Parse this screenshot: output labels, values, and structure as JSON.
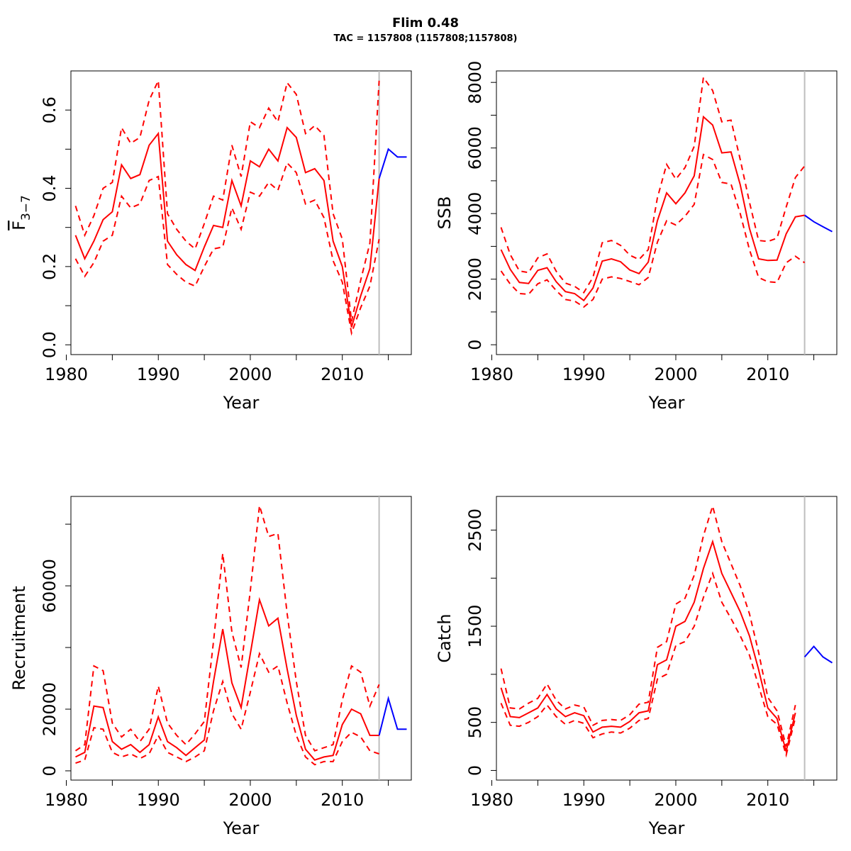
{
  "header": {
    "title": "Flim 0.48",
    "subtitle": "TAC = 1157808 (1157808;1157808)"
  },
  "colors": {
    "estimate": "#ff0000",
    "forecast": "#0000ff",
    "divider": "#bebebe",
    "axis": "#000000"
  },
  "chart_data": [
    {
      "type": "line",
      "ylabel_main": "F",
      "ylabel_sub": "3−7",
      "xlabel": "Year",
      "xlim": [
        1980.5,
        2017.5
      ],
      "ylim": [
        -0.025,
        0.7
      ],
      "xticks": [
        1980,
        1990,
        2000,
        2010
      ],
      "xminorticks": [
        1985,
        1995,
        2005,
        2015
      ],
      "yticks": [
        "0.0",
        "0.2",
        "0.4",
        "0.6"
      ],
      "ytick_values": [
        0.0,
        0.2,
        0.4,
        0.6
      ],
      "yminorticks": [
        0.1,
        0.3,
        0.5
      ],
      "divider_x": 2014,
      "estimate": {
        "x": [
          1981,
          1982,
          1983,
          1984,
          1985,
          1986,
          1987,
          1988,
          1989,
          1990,
          1991,
          1992,
          1993,
          1994,
          1995,
          1996,
          1997,
          1998,
          1999,
          2000,
          2001,
          2002,
          2003,
          2004,
          2005,
          2006,
          2007,
          2008,
          2009,
          2010,
          2011,
          2012,
          2013,
          2014
        ],
        "mid": [
          0.28,
          0.22,
          0.265,
          0.32,
          0.34,
          0.46,
          0.425,
          0.435,
          0.51,
          0.54,
          0.265,
          0.23,
          0.205,
          0.19,
          0.25,
          0.305,
          0.3,
          0.42,
          0.355,
          0.47,
          0.455,
          0.5,
          0.47,
          0.555,
          0.53,
          0.44,
          0.45,
          0.42,
          0.265,
          0.2,
          0.045,
          0.125,
          0.195,
          0.425
        ],
        "lower": [
          0.22,
          0.175,
          0.21,
          0.265,
          0.28,
          0.38,
          0.35,
          0.36,
          0.42,
          0.43,
          0.205,
          0.18,
          0.16,
          0.15,
          0.2,
          0.245,
          0.25,
          0.35,
          0.295,
          0.39,
          0.38,
          0.415,
          0.395,
          0.465,
          0.44,
          0.36,
          0.37,
          0.325,
          0.215,
          0.16,
          0.03,
          0.095,
          0.15,
          0.27
        ],
        "upper": [
          0.355,
          0.28,
          0.33,
          0.4,
          0.415,
          0.555,
          0.515,
          0.53,
          0.625,
          0.675,
          0.335,
          0.295,
          0.265,
          0.245,
          0.31,
          0.38,
          0.37,
          0.51,
          0.43,
          0.57,
          0.555,
          0.605,
          0.57,
          0.67,
          0.64,
          0.54,
          0.56,
          0.535,
          0.335,
          0.27,
          0.06,
          0.165,
          0.26,
          0.675
        ]
      },
      "forecast": {
        "x": [
          2014,
          2015,
          2016,
          2017
        ],
        "values": [
          0.425,
          0.5,
          0.48,
          0.48
        ]
      }
    },
    {
      "type": "line",
      "ylabel": "SSB",
      "xlabel": "Year",
      "xlim": [
        1980.5,
        2017.5
      ],
      "ylim": [
        -300,
        8350
      ],
      "xticks": [
        1980,
        1990,
        2000,
        2010
      ],
      "xminorticks": [
        1985,
        1995,
        2005,
        2015
      ],
      "yticks": [
        "0",
        "2000",
        "4000",
        "6000",
        "8000"
      ],
      "ytick_values": [
        0,
        2000,
        4000,
        6000,
        8000
      ],
      "yminorticks": [
        1000,
        3000,
        5000,
        7000
      ],
      "divider_x": 2014,
      "estimate": {
        "x": [
          1981,
          1982,
          1983,
          1984,
          1985,
          1986,
          1987,
          1988,
          1989,
          1990,
          1991,
          1992,
          1993,
          1994,
          1995,
          1996,
          1997,
          1998,
          1999,
          2000,
          2001,
          2002,
          2003,
          2004,
          2005,
          2006,
          2007,
          2008,
          2009,
          2010,
          2011,
          2012,
          2013,
          2014
        ],
        "mid": [
          2900,
          2300,
          1900,
          1870,
          2270,
          2350,
          1920,
          1620,
          1560,
          1350,
          1730,
          2550,
          2620,
          2530,
          2280,
          2170,
          2520,
          3780,
          4630,
          4300,
          4630,
          5150,
          6950,
          6700,
          5850,
          5880,
          4880,
          3550,
          2620,
          2570,
          2580,
          3380,
          3900,
          3950
        ],
        "lower": [
          2250,
          1850,
          1560,
          1540,
          1860,
          1980,
          1650,
          1380,
          1330,
          1150,
          1380,
          2000,
          2070,
          2020,
          1930,
          1830,
          2050,
          3130,
          3780,
          3650,
          3920,
          4280,
          5800,
          5650,
          4950,
          4900,
          4000,
          2900,
          2050,
          1920,
          1900,
          2500,
          2700,
          2500
        ],
        "upper": [
          3580,
          2750,
          2250,
          2200,
          2650,
          2770,
          2240,
          1880,
          1780,
          1590,
          2060,
          3110,
          3180,
          3030,
          2730,
          2600,
          2900,
          4480,
          5500,
          5050,
          5400,
          6050,
          8150,
          7750,
          6800,
          6850,
          5650,
          4350,
          3180,
          3150,
          3250,
          4200,
          5100,
          5450
        ]
      },
      "forecast": {
        "x": [
          2014,
          2015,
          2016,
          2017
        ],
        "values": [
          3950,
          3750,
          3600,
          3450
        ]
      }
    },
    {
      "type": "line",
      "ylabel": "Recruitment",
      "xlabel": "Year",
      "xlim": [
        1980.5,
        2017.5
      ],
      "ylim": [
        -3000,
        89000
      ],
      "xticks": [
        1980,
        1990,
        2000,
        2010
      ],
      "xminorticks": [
        1985,
        1995,
        2005,
        2015
      ],
      "yticks": [
        "0",
        "20000",
        "60000"
      ],
      "ytick_values": [
        0,
        20000,
        60000
      ],
      "yminorticks": [
        40000,
        80000
      ],
      "divider_x": 2014,
      "estimate": {
        "x": [
          1981,
          1982,
          1983,
          1984,
          1985,
          1986,
          1987,
          1988,
          1989,
          1990,
          1991,
          1992,
          1993,
          1994,
          1995,
          1996,
          1997,
          1998,
          1999,
          2000,
          2001,
          2002,
          2003,
          2004,
          2005,
          2006,
          2007,
          2008,
          2009,
          2010,
          2011,
          2012,
          2013,
          2014
        ],
        "mid": [
          4500,
          6000,
          21000,
          20500,
          9500,
          7000,
          8500,
          6000,
          8500,
          17500,
          9500,
          7500,
          5000,
          7500,
          10000,
          29000,
          46000,
          28500,
          20500,
          38000,
          55500,
          47000,
          49500,
          33000,
          18000,
          7000,
          3500,
          4500,
          5000,
          15000,
          20000,
          18500,
          11500,
          11500
        ],
        "lower": [
          2500,
          3500,
          14000,
          13500,
          6000,
          4500,
          5500,
          4000,
          5500,
          11500,
          6000,
          4500,
          3000,
          4500,
          6500,
          19500,
          29000,
          18500,
          13500,
          25500,
          38000,
          32000,
          34000,
          22000,
          11500,
          4500,
          2000,
          3000,
          3000,
          9500,
          12500,
          11000,
          6500,
          5500
        ],
        "upper": [
          6500,
          8500,
          34000,
          32500,
          15500,
          11000,
          13500,
          9500,
          13500,
          27500,
          15500,
          11500,
          8500,
          12000,
          16000,
          42000,
          70500,
          45000,
          33500,
          58500,
          86000,
          76000,
          77000,
          51000,
          29000,
          11500,
          6500,
          7500,
          8500,
          23000,
          34000,
          32000,
          21000,
          28000
        ]
      },
      "forecast": {
        "x": [
          2014,
          2015,
          2016,
          2017
        ],
        "values": [
          11500,
          23500,
          13500,
          13500
        ]
      }
    },
    {
      "type": "line",
      "ylabel": "Catch",
      "xlabel": "Year",
      "xlim": [
        1980.5,
        2017.5
      ],
      "ylim": [
        -100,
        2850
      ],
      "xticks": [
        1980,
        1990,
        2000,
        2010
      ],
      "xminorticks": [
        1985,
        1995,
        2005,
        2015
      ],
      "yticks": [
        "0",
        "500",
        "1500",
        "2500"
      ],
      "ytick_values": [
        0,
        500,
        1500,
        2500
      ],
      "yminorticks": [
        1000,
        2000
      ],
      "divider_x": 2014,
      "estimate": {
        "x": [
          1981,
          1982,
          1983,
          1984,
          1985,
          1986,
          1987,
          1988,
          1989,
          1990,
          1991,
          1992,
          1993,
          1994,
          1995,
          1996,
          1997,
          1998,
          1999,
          2000,
          2001,
          2002,
          2003,
          2004,
          2005,
          2006,
          2007,
          2008,
          2009,
          2010,
          2011,
          2012,
          2013
        ],
        "mid": [
          860,
          560,
          550,
          600,
          650,
          790,
          640,
          560,
          600,
          570,
          400,
          450,
          460,
          450,
          510,
          600,
          620,
          1100,
          1150,
          1500,
          1550,
          1750,
          2100,
          2380,
          2050,
          1850,
          1650,
          1400,
          1050,
          650,
          540,
          200,
          600
        ],
        "lower": [
          700,
          470,
          460,
          500,
          560,
          680,
          560,
          480,
          520,
          490,
          340,
          380,
          400,
          390,
          440,
          520,
          540,
          950,
          1000,
          1300,
          1340,
          1500,
          1800,
          2050,
          1750,
          1580,
          1400,
          1200,
          880,
          560,
          480,
          160,
          550
        ],
        "upper": [
          1060,
          650,
          640,
          700,
          750,
          900,
          730,
          640,
          680,
          660,
          470,
          520,
          530,
          520,
          580,
          690,
          710,
          1280,
          1340,
          1730,
          1790,
          2030,
          2440,
          2750,
          2380,
          2150,
          1920,
          1630,
          1230,
          760,
          620,
          250,
          680
        ]
      },
      "forecast": {
        "x": [
          2014,
          2015,
          2016,
          2017
        ],
        "values": [
          1180,
          1290,
          1180,
          1120
        ]
      }
    }
  ]
}
